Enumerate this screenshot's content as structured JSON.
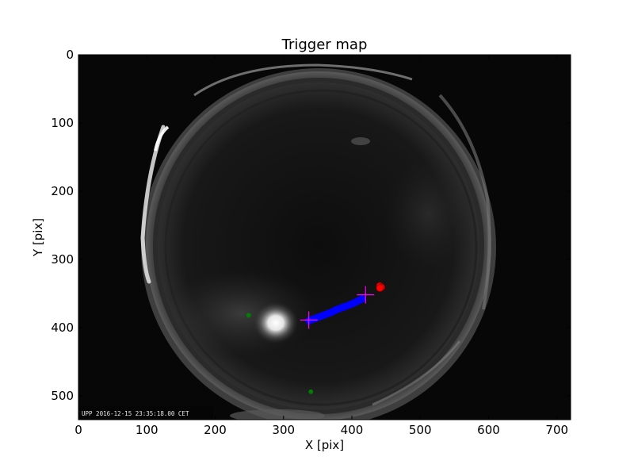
{
  "chart_data": {
    "type": "scatter",
    "title": "Trigger map",
    "xlabel": "X [pix]",
    "ylabel": "Y [pix]",
    "xlim": [
      0,
      720
    ],
    "ylim": [
      535,
      0
    ],
    "x_ticks": [
      0,
      100,
      200,
      300,
      400,
      500,
      600,
      700
    ],
    "y_ticks": [
      0,
      100,
      200,
      300,
      400,
      500
    ],
    "grid": false,
    "timestamp_text": "UPP 2016-12-15 23:35:18.00 CET",
    "series": [
      {
        "color": "#0000ff",
        "marker": "circle",
        "x": [
          337,
          345,
          353,
          361,
          369,
          377,
          385,
          393,
          401,
          409,
          415
        ],
        "y": [
          390,
          387,
          384,
          381,
          378,
          374,
          371,
          368,
          365,
          361,
          358
        ]
      },
      {
        "color": "#ff0000",
        "marker": "circle",
        "x": [
          441,
          443,
          441
        ],
        "y": [
          339,
          341,
          342
        ]
      },
      {
        "color": "#008000",
        "marker": "circle",
        "x": [
          249,
          340
        ],
        "y": [
          382,
          494
        ]
      },
      {
        "color": "#ff00ff",
        "marker": "plus",
        "x": [
          337,
          420
        ],
        "y": [
          389,
          352
        ]
      }
    ]
  }
}
